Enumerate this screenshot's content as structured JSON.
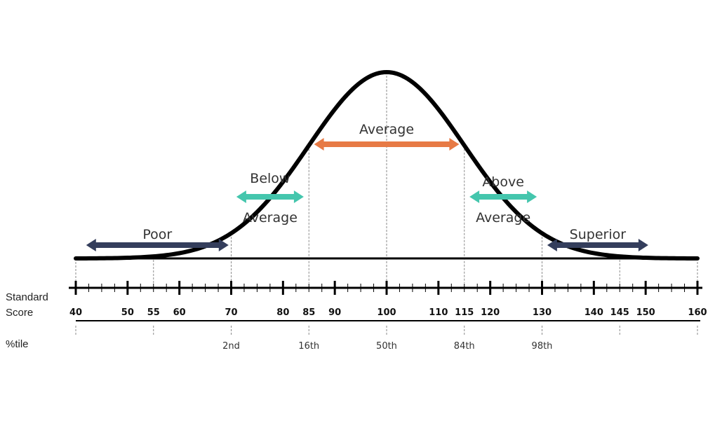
{
  "labels": {
    "standard_score": [
      "Standard",
      "Score"
    ],
    "percentile": "%tile"
  },
  "colors": {
    "curve": "#000000",
    "poor": "#343e5c",
    "below_average": "#44c6ad",
    "average": "#e77a45",
    "above_average": "#44c6ad",
    "superior": "#343e5c",
    "guide_line": "#8a8a8a"
  },
  "scale": {
    "min": 40,
    "max": 160,
    "major_step": 10,
    "minor_step": 2.5
  },
  "score_ticks": [
    40,
    50,
    55,
    60,
    70,
    80,
    85,
    90,
    100,
    110,
    115,
    120,
    130,
    140,
    145,
    150,
    160
  ],
  "guide_lines": [
    40,
    55,
    70,
    85,
    100,
    115,
    130,
    145,
    160
  ],
  "percentiles": [
    {
      "score": 70,
      "label": "2nd"
    },
    {
      "score": 85,
      "label": "16th"
    },
    {
      "score": 100,
      "label": "50th"
    },
    {
      "score": 115,
      "label": "84th"
    },
    {
      "score": 130,
      "label": "98th"
    }
  ],
  "bands": [
    {
      "key": "poor",
      "lines": [
        "Poor"
      ],
      "from": 42,
      "to": 69.5,
      "color_key": "poor"
    },
    {
      "key": "below_average",
      "lines": [
        "Below",
        "Average"
      ],
      "from": 71,
      "to": 84,
      "color_key": "below_average"
    },
    {
      "key": "average",
      "lines": [
        "Average"
      ],
      "from": 86,
      "to": 114,
      "color_key": "average"
    },
    {
      "key": "above_average",
      "lines": [
        "Above",
        "Average"
      ],
      "from": 116,
      "to": 129,
      "color_key": "above_average"
    },
    {
      "key": "superior",
      "lines": [
        "Superior"
      ],
      "from": 131,
      "to": 150.5,
      "color_key": "superior"
    }
  ]
}
